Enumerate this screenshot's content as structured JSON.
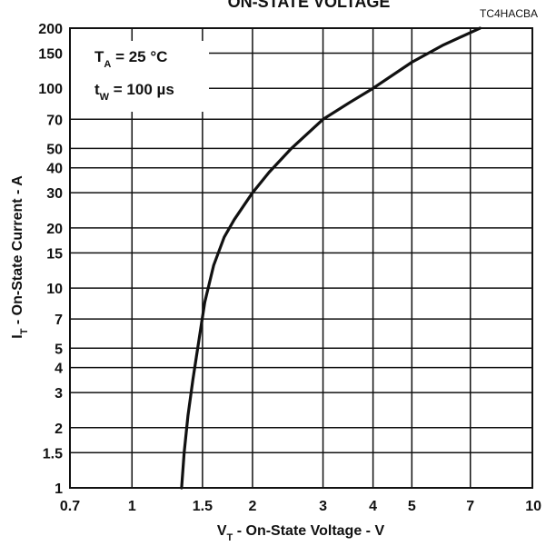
{
  "chart_data": {
    "type": "line",
    "title": "ON-STATE VOLTAGE",
    "code": "TC4HACBA",
    "xlabel": {
      "main": "V",
      "sub": "T",
      "rest": " - On-State Voltage - V"
    },
    "ylabel": {
      "main": "I",
      "sub": "T",
      "rest": " - On-State Current - A"
    },
    "x_scale": "log",
    "y_scale": "log",
    "xlim": [
      0.7,
      10
    ],
    "ylim": [
      1,
      200
    ],
    "x_ticks": [
      0.7,
      1,
      1.5,
      2,
      3,
      4,
      5,
      7,
      10
    ],
    "x_tick_labels": [
      "0.7",
      "1",
      "1.5",
      "2",
      "3",
      "4",
      "5",
      "7",
      "10"
    ],
    "y_ticks": [
      1,
      1.5,
      2,
      3,
      4,
      5,
      7,
      10,
      15,
      20,
      30,
      40,
      50,
      70,
      100,
      150,
      200
    ],
    "y_tick_labels": [
      "1",
      "1.5",
      "2",
      "3",
      "4",
      "5",
      "7",
      "10",
      "15",
      "20",
      "30",
      "40",
      "50",
      "70",
      "100",
      "150",
      "200"
    ],
    "grid": true,
    "annotation": {
      "line1": {
        "main": "T",
        "sub": "A",
        "rest": " = 25 °C"
      },
      "line2": {
        "main": "t",
        "sub": "W",
        "rest": " = 100 µs"
      }
    },
    "series": [
      {
        "x": [
          1.33,
          1.35,
          1.38,
          1.42,
          1.47,
          1.52,
          1.6,
          1.7,
          1.8,
          2.0,
          2.2,
          2.5,
          3.0,
          3.5,
          4.0,
          5.0,
          6.0,
          7.0,
          7.4
        ],
        "y": [
          1,
          1.5,
          2.3,
          3.5,
          5.5,
          8.5,
          13,
          18,
          22,
          30,
          38,
          50,
          70,
          85,
          100,
          135,
          165,
          190,
          200
        ]
      }
    ]
  }
}
